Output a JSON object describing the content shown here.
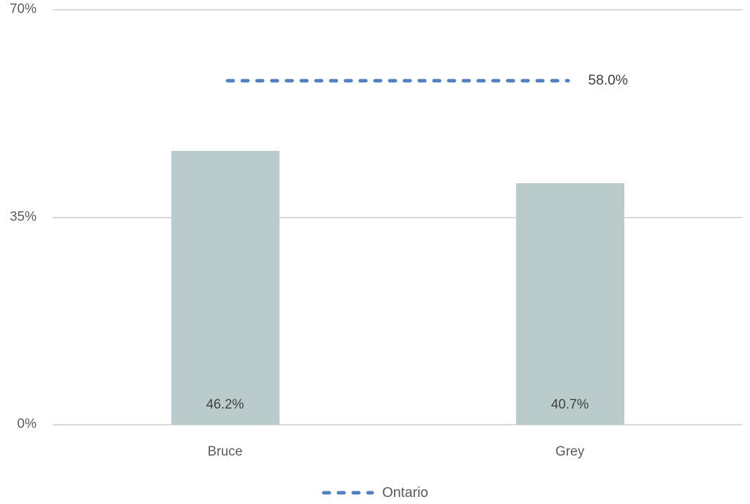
{
  "chart_data": {
    "type": "bar",
    "title": "",
    "xlabel": "",
    "ylabel": "",
    "categories": [
      "Bruce",
      "Grey"
    ],
    "values": [
      46.2,
      40.7
    ],
    "value_labels": [
      "46.2%",
      "40.7%"
    ],
    "reference_line": {
      "name": "Ontario",
      "value": 58.0,
      "label": "58.0%",
      "style": "dashed"
    },
    "ylim": [
      0,
      70
    ],
    "yticks": [
      0,
      35,
      70
    ],
    "ytick_labels": [
      "0%",
      "35%",
      "70%"
    ],
    "grid": true,
    "legend": {
      "position": "bottom",
      "entries": [
        "Ontario"
      ]
    }
  },
  "colors": {
    "bar_fill": "#BACBCB",
    "reference_line": "#4E81BD",
    "gridline": "#D9D9D9",
    "axis_text": "#595959",
    "data_label_text": "#404040",
    "background": "#FFFFFF"
  }
}
